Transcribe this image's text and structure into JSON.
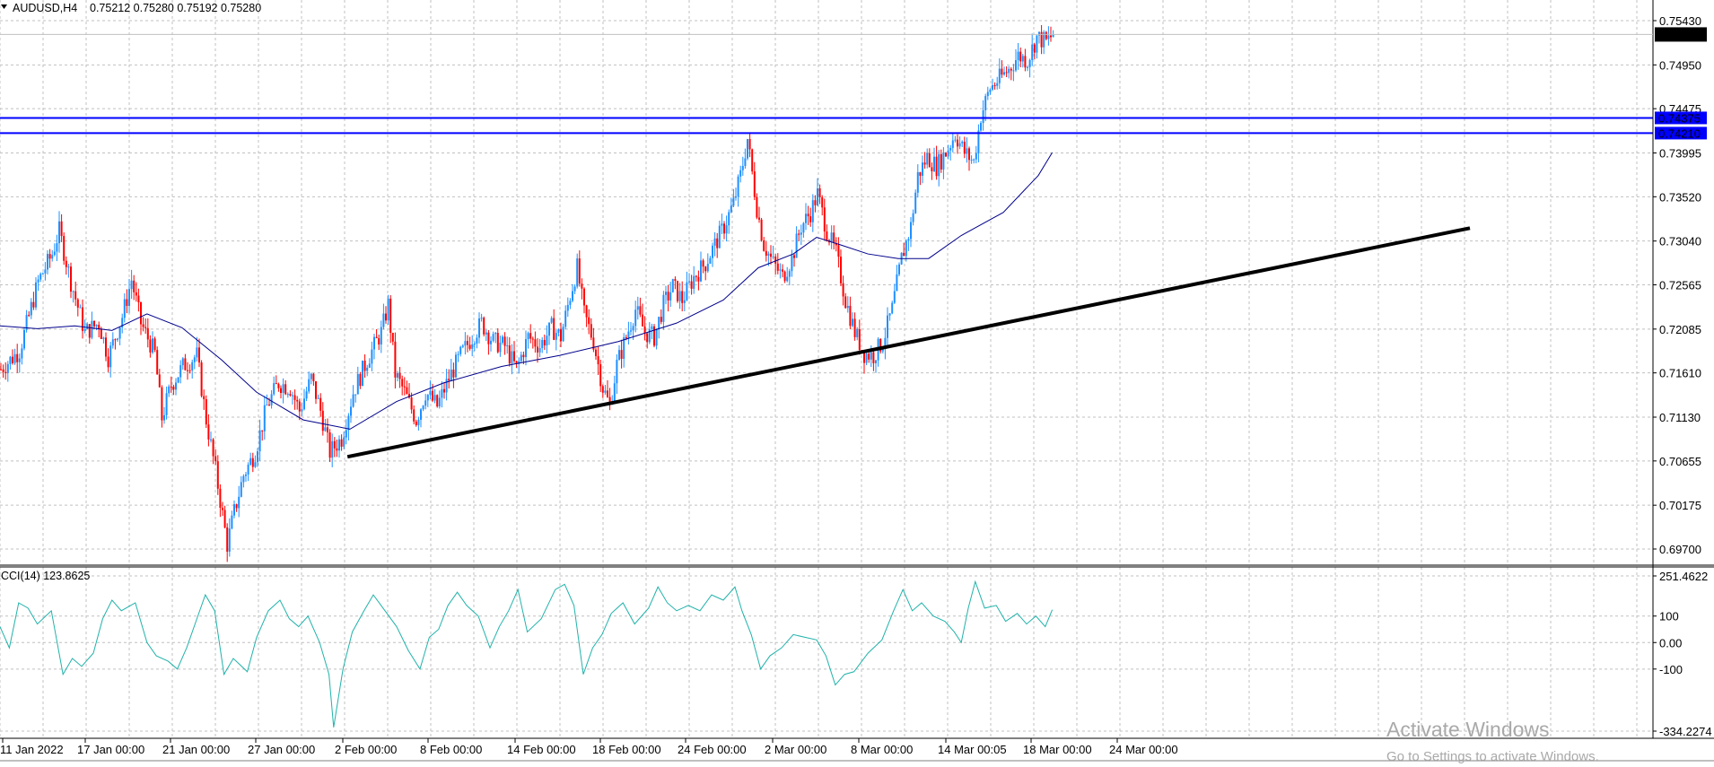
{
  "header": {
    "symbol": "AUDUSD,H4",
    "ohlc": "0.75212 0.75280 0.75192 0.75280"
  },
  "indicator": {
    "label": "CCI(14) 123.8625",
    "ticks": [
      "251.4622",
      "100",
      "0.00",
      "-100",
      "-334.2274"
    ]
  },
  "watermark": {
    "line1": "Activate Windows",
    "line2": "Go to Settings to activate Windows."
  },
  "colors": {
    "bull": "#1e90ff",
    "bear": "#ff0000",
    "ma": "#00008b",
    "trendline": "#000000",
    "hline": "#0000ff",
    "cci": "#20b2aa",
    "grid": "#c0c0c0"
  },
  "chart_data": [
    {
      "type": "candlestick",
      "symbol": "AUDUSD",
      "timeframe": "H4",
      "price_ticks": [
        "0.75430",
        "0.74950",
        "0.74475",
        "0.73995",
        "0.73520",
        "0.73040",
        "0.72565",
        "0.72085",
        "0.71610",
        "0.71130",
        "0.70655",
        "0.70175",
        "0.69700"
      ],
      "x_labels": [
        "11 Jan 2022",
        "17 Jan 00:00",
        "21 Jan 00:00",
        "27 Jan 00:00",
        "2 Feb 00:00",
        "8 Feb 00:00",
        "14 Feb 00:00",
        "18 Feb 00:00",
        "24 Feb 00:00",
        "2 Mar 00:00",
        "8 Mar 00:00",
        "14 Mar 00:05",
        "18 Mar 00:00",
        "24 Mar 00:00"
      ],
      "current_price": "0.75280",
      "horizontal_lines": [
        "0.74375",
        "0.74210"
      ],
      "ylim": [
        0.6965,
        0.7558
      ],
      "path_points": [
        [
          0,
          0.7165
        ],
        [
          8,
          0.7185
        ],
        [
          16,
          0.726
        ],
        [
          22,
          0.729
        ],
        [
          25,
          0.7315
        ],
        [
          30,
          0.726
        ],
        [
          36,
          0.7205
        ],
        [
          42,
          0.7215
        ],
        [
          46,
          0.7178
        ],
        [
          52,
          0.7222
        ],
        [
          56,
          0.7262
        ],
        [
          60,
          0.7215
        ],
        [
          66,
          0.7182
        ],
        [
          69,
          0.7112
        ],
        [
          73,
          0.7148
        ],
        [
          78,
          0.7168
        ],
        [
          84,
          0.718
        ],
        [
          88,
          0.711
        ],
        [
          92,
          0.7055
        ],
        [
          97,
          0.6975
        ],
        [
          100,
          0.701
        ],
        [
          104,
          0.705
        ],
        [
          109,
          0.7075
        ],
        [
          114,
          0.7125
        ],
        [
          119,
          0.715
        ],
        [
          124,
          0.7145
        ],
        [
          128,
          0.712
        ],
        [
          133,
          0.7155
        ],
        [
          137,
          0.712
        ],
        [
          141,
          0.7075
        ],
        [
          146,
          0.709
        ],
        [
          151,
          0.714
        ],
        [
          157,
          0.7175
        ],
        [
          163,
          0.7205
        ],
        [
          166,
          0.7235
        ],
        [
          169,
          0.716
        ],
        [
          173,
          0.714
        ],
        [
          178,
          0.711
        ],
        [
          182,
          0.714
        ],
        [
          187,
          0.7125
        ],
        [
          192,
          0.7155
        ],
        [
          197,
          0.718
        ],
        [
          202,
          0.72
        ],
        [
          206,
          0.7215
        ],
        [
          211,
          0.7195
        ],
        [
          216,
          0.719
        ],
        [
          221,
          0.7165
        ],
        [
          226,
          0.72
        ],
        [
          231,
          0.719
        ],
        [
          236,
          0.721
        ],
        [
          240,
          0.72
        ],
        [
          244,
          0.7245
        ],
        [
          247,
          0.7275
        ],
        [
          250,
          0.7225
        ],
        [
          254,
          0.7195
        ],
        [
          258,
          0.7145
        ],
        [
          261,
          0.7125
        ],
        [
          264,
          0.717
        ],
        [
          268,
          0.72
        ],
        [
          272,
          0.723
        ],
        [
          276,
          0.7205
        ],
        [
          280,
          0.72
        ],
        [
          284,
          0.7235
        ],
        [
          288,
          0.7255
        ],
        [
          292,
          0.724
        ],
        [
          297,
          0.7265
        ],
        [
          302,
          0.728
        ],
        [
          306,
          0.73
        ],
        [
          310,
          0.732
        ],
        [
          314,
          0.7345
        ],
        [
          317,
          0.7375
        ],
        [
          320,
          0.7415
        ],
        [
          324,
          0.734
        ],
        [
          327,
          0.73
        ],
        [
          331,
          0.728
        ],
        [
          335,
          0.7265
        ],
        [
          339,
          0.7285
        ],
        [
          343,
          0.732
        ],
        [
          347,
          0.7335
        ],
        [
          350,
          0.7355
        ],
        [
          354,
          0.7315
        ],
        [
          358,
          0.729
        ],
        [
          362,
          0.724
        ],
        [
          366,
          0.7205
        ],
        [
          370,
          0.7182
        ],
        [
          374,
          0.718
        ],
        [
          378,
          0.7195
        ],
        [
          382,
          0.723
        ],
        [
          386,
          0.7285
        ],
        [
          390,
          0.732
        ],
        [
          393,
          0.7375
        ],
        [
          397,
          0.7395
        ],
        [
          401,
          0.7385
        ],
        [
          405,
          0.74
        ],
        [
          409,
          0.742
        ],
        [
          413,
          0.74
        ],
        [
          417,
          0.739
        ],
        [
          420,
          0.744
        ],
        [
          424,
          0.747
        ],
        [
          428,
          0.748
        ],
        [
          432,
          0.749
        ],
        [
          436,
          0.7505
        ],
        [
          440,
          0.75
        ],
        [
          444,
          0.7525
        ],
        [
          448,
          0.752
        ],
        [
          451,
          0.7528
        ]
      ],
      "series": [
        {
          "name": "",
          "type": "line",
          "points": [
            [
              0,
              0.7212
            ],
            [
              16,
              0.7209
            ],
            [
              32,
              0.7212
            ],
            [
              48,
              0.7207
            ],
            [
              63,
              0.7225
            ],
            [
              78,
              0.721
            ],
            [
              95,
              0.7175
            ],
            [
              110,
              0.714
            ],
            [
              130,
              0.711
            ],
            [
              150,
              0.71
            ],
            [
              170,
              0.713
            ],
            [
              190,
              0.715
            ],
            [
              215,
              0.7168
            ],
            [
              240,
              0.718
            ],
            [
              265,
              0.7195
            ],
            [
              290,
              0.7215
            ],
            [
              310,
              0.724
            ],
            [
              325,
              0.7275
            ],
            [
              340,
              0.729
            ],
            [
              350,
              0.7308
            ],
            [
              360,
              0.73
            ],
            [
              372,
              0.729
            ],
            [
              385,
              0.7285
            ],
            [
              398,
              0.7285
            ],
            [
              412,
              0.731
            ],
            [
              430,
              0.7335
            ],
            [
              445,
              0.7375
            ],
            [
              451,
              0.74
            ]
          ]
        },
        {
          "name": "",
          "type": "line",
          "points": [
            [
              132,
              0.707
            ],
            [
              630,
              0.7318
            ]
          ]
        }
      ]
    },
    {
      "type": "line",
      "name": "CCI(14)",
      "ticks": [
        251.4622,
        100,
        0.0,
        -100,
        -334.2274
      ],
      "ylim": [
        -334.2274,
        251.4622
      ],
      "path_points": [
        [
          0,
          60
        ],
        [
          4,
          -20
        ],
        [
          8,
          150
        ],
        [
          12,
          130
        ],
        [
          16,
          70
        ],
        [
          22,
          120
        ],
        [
          27,
          -120
        ],
        [
          31,
          -60
        ],
        [
          35,
          -90
        ],
        [
          40,
          -40
        ],
        [
          44,
          90
        ],
        [
          48,
          160
        ],
        [
          52,
          120
        ],
        [
          58,
          150
        ],
        [
          63,
          0
        ],
        [
          67,
          -50
        ],
        [
          72,
          -70
        ],
        [
          76,
          -100
        ],
        [
          80,
          -20
        ],
        [
          84,
          80
        ],
        [
          88,
          180
        ],
        [
          92,
          120
        ],
        [
          96,
          -120
        ],
        [
          100,
          -60
        ],
        [
          106,
          -110
        ],
        [
          110,
          20
        ],
        [
          115,
          120
        ],
        [
          120,
          160
        ],
        [
          124,
          90
        ],
        [
          128,
          60
        ],
        [
          132,
          100
        ],
        [
          137,
          0
        ],
        [
          141,
          -120
        ],
        [
          143,
          -320
        ],
        [
          147,
          -100
        ],
        [
          151,
          40
        ],
        [
          156,
          120
        ],
        [
          160,
          180
        ],
        [
          165,
          120
        ],
        [
          170,
          60
        ],
        [
          175,
          -30
        ],
        [
          180,
          -100
        ],
        [
          184,
          20
        ],
        [
          188,
          50
        ],
        [
          192,
          140
        ],
        [
          196,
          190
        ],
        [
          200,
          140
        ],
        [
          205,
          100
        ],
        [
          210,
          -20
        ],
        [
          214,
          60
        ],
        [
          218,
          120
        ],
        [
          222,
          200
        ],
        [
          226,
          40
        ],
        [
          232,
          90
        ],
        [
          238,
          200
        ],
        [
          242,
          220
        ],
        [
          246,
          140
        ],
        [
          250,
          -120
        ],
        [
          254,
          -20
        ],
        [
          258,
          30
        ],
        [
          262,
          110
        ],
        [
          267,
          150
        ],
        [
          272,
          70
        ],
        [
          278,
          130
        ],
        [
          282,
          210
        ],
        [
          286,
          150
        ],
        [
          290,
          120
        ],
        [
          295,
          140
        ],
        [
          300,
          120
        ],
        [
          305,
          180
        ],
        [
          310,
          160
        ],
        [
          315,
          210
        ],
        [
          318,
          120
        ],
        [
          322,
          30
        ],
        [
          326,
          -100
        ],
        [
          330,
          -50
        ],
        [
          335,
          -20
        ],
        [
          340,
          30
        ],
        [
          345,
          20
        ],
        [
          350,
          10
        ],
        [
          354,
          -50
        ],
        [
          358,
          -160
        ],
        [
          362,
          -120
        ],
        [
          366,
          -110
        ],
        [
          372,
          -40
        ],
        [
          378,
          10
        ],
        [
          383,
          120
        ],
        [
          387,
          200
        ],
        [
          391,
          120
        ],
        [
          395,
          150
        ],
        [
          400,
          100
        ],
        [
          405,
          80
        ],
        [
          409,
          40
        ],
        [
          412,
          0
        ],
        [
          415,
          130
        ],
        [
          418,
          230
        ],
        [
          422,
          130
        ],
        [
          427,
          140
        ],
        [
          431,
          80
        ],
        [
          436,
          110
        ],
        [
          440,
          70
        ],
        [
          444,
          100
        ],
        [
          448,
          60
        ],
        [
          451,
          124
        ]
      ]
    }
  ]
}
